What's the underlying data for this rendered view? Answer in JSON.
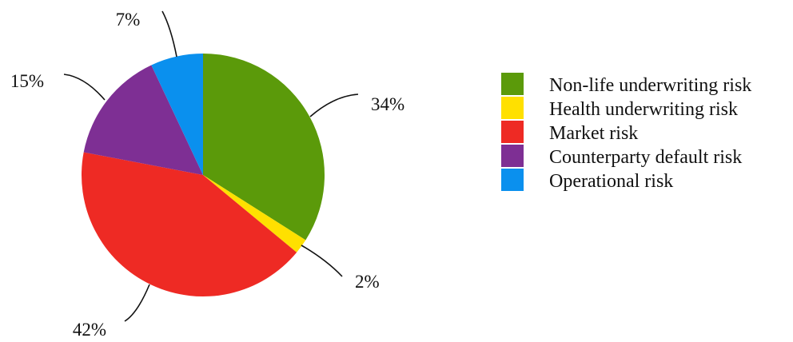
{
  "chart_data": {
    "type": "pie",
    "title": "",
    "slices": [
      {
        "label": "Non-life underwriting risk",
        "value": 34,
        "display": "34%",
        "color": "#5b9a0a"
      },
      {
        "label": "Health underwriting risk",
        "value": 2,
        "display": "2%",
        "color": "#ffe000"
      },
      {
        "label": "Market risk",
        "value": 42,
        "display": "42%",
        "color": "#ee2a24"
      },
      {
        "label": "Counterparty default risk",
        "value": 15,
        "display": "15%",
        "color": "#7e2f94"
      },
      {
        "label": "Operational risk",
        "value": 7,
        "display": "7%",
        "color": "#0a90ee"
      }
    ],
    "start_angle": "12 o'clock",
    "direction": "clockwise",
    "legend_position": "right"
  }
}
